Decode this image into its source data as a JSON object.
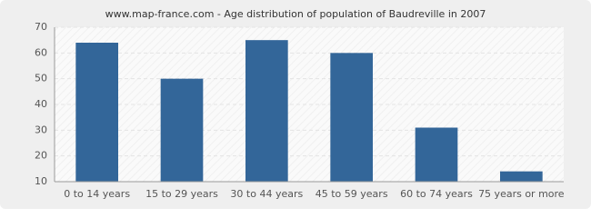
{
  "chart_data": {
    "type": "bar",
    "title": "www.map-france.com - Age distribution of population of Baudreville in 2007",
    "categories": [
      "0 to 14 years",
      "15 to 29 years",
      "30 to 44 years",
      "45 to 59 years",
      "60 to 74 years",
      "75 years or more"
    ],
    "values": [
      64,
      50,
      65,
      60,
      31,
      14
    ],
    "color": "#336699",
    "ylim": [
      10,
      70
    ],
    "yticks": [
      10,
      20,
      30,
      40,
      50,
      60,
      70
    ],
    "grid": true
  }
}
